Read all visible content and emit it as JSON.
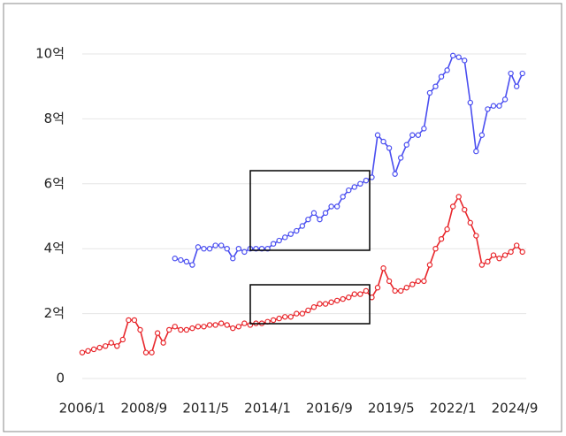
{
  "chart_data": {
    "type": "line",
    "x": [
      "2006/1",
      "2006/4",
      "2006/7",
      "2006/10",
      "2007/1",
      "2007/4",
      "2007/7",
      "2007/10",
      "2008/1",
      "2008/4",
      "2008/7",
      "2008/10",
      "2009/1",
      "2009/4",
      "2009/7",
      "2009/10",
      "2010/1",
      "2010/4",
      "2010/7",
      "2010/10",
      "2011/1",
      "2011/4",
      "2011/7",
      "2011/10",
      "2012/1",
      "2012/4",
      "2012/7",
      "2012/10",
      "2013/1",
      "2013/4",
      "2013/7",
      "2013/10",
      "2014/1",
      "2014/4",
      "2014/7",
      "2014/10",
      "2015/1",
      "2015/4",
      "2015/7",
      "2015/10",
      "2016/1",
      "2016/4",
      "2016/7",
      "2016/10",
      "2017/1",
      "2017/4",
      "2017/7",
      "2017/10",
      "2018/1",
      "2018/4",
      "2018/7",
      "2018/10",
      "2019/1",
      "2019/4",
      "2019/7",
      "2019/10",
      "2020/1",
      "2020/4",
      "2020/7",
      "2020/10",
      "2021/1",
      "2021/4",
      "2021/7",
      "2021/10",
      "2022/1",
      "2022/4",
      "2022/7",
      "2022/10",
      "2023/1",
      "2023/4",
      "2023/7",
      "2023/10",
      "2024/1",
      "2024/4",
      "2024/7",
      "2024/10",
      "2025/1"
    ],
    "series": [
      {
        "color": "#4a4ef0",
        "values": [
          null,
          null,
          null,
          null,
          null,
          null,
          null,
          null,
          null,
          null,
          null,
          null,
          null,
          null,
          null,
          null,
          3.7,
          3.65,
          3.6,
          3.5,
          4.05,
          4.0,
          4.0,
          4.1,
          4.1,
          4.0,
          3.7,
          4.0,
          3.9,
          4.0,
          4.0,
          4.0,
          4.0,
          4.15,
          4.25,
          4.35,
          4.45,
          4.55,
          4.7,
          4.9,
          5.1,
          4.9,
          5.1,
          5.3,
          5.3,
          5.6,
          5.8,
          5.9,
          6.0,
          6.1,
          6.2,
          7.5,
          7.3,
          7.1,
          6.3,
          6.8,
          7.2,
          7.5,
          7.5,
          7.7,
          8.8,
          9.0,
          9.3,
          9.5,
          9.95,
          9.9,
          9.8,
          8.5,
          7.0,
          7.5,
          8.3,
          8.4,
          8.4,
          8.6,
          9.4,
          9.0,
          9.4
        ]
      },
      {
        "color": "#e8262b",
        "values": [
          0.8,
          0.85,
          0.9,
          0.95,
          1.0,
          1.1,
          1.0,
          1.2,
          1.8,
          1.8,
          1.5,
          0.8,
          0.8,
          1.4,
          1.1,
          1.5,
          1.6,
          1.5,
          1.5,
          1.55,
          1.6,
          1.6,
          1.65,
          1.65,
          1.7,
          1.65,
          1.55,
          1.6,
          1.7,
          1.65,
          1.7,
          1.7,
          1.75,
          1.8,
          1.85,
          1.9,
          1.9,
          2.0,
          2.0,
          2.1,
          2.2,
          2.3,
          2.3,
          2.35,
          2.4,
          2.45,
          2.5,
          2.6,
          2.6,
          2.7,
          2.5,
          2.8,
          3.4,
          3.0,
          2.7,
          2.7,
          2.8,
          2.9,
          3.0,
          3.0,
          3.5,
          4.0,
          4.3,
          4.6,
          5.3,
          5.6,
          5.2,
          4.8,
          4.4,
          3.5,
          3.6,
          3.8,
          3.7,
          3.8,
          3.9,
          4.1,
          3.9
        ]
      }
    ],
    "xlim": [
      "2006/1",
      "2025/3"
    ],
    "xticks": [
      "2006/1",
      "2008/9",
      "2011/5",
      "2014/1",
      "2016/9",
      "2019/5",
      "2022/1",
      "2024/9"
    ],
    "ylim": [
      0,
      10
    ],
    "yticks": [
      0,
      {
        "value": 2,
        "label": "2억"
      },
      {
        "value": 4,
        "label": "4억"
      },
      {
        "value": 6,
        "label": "6억"
      },
      {
        "value": 8,
        "label": "8억"
      },
      {
        "value": 10,
        "label": "10억"
      }
    ],
    "grid": true
  }
}
